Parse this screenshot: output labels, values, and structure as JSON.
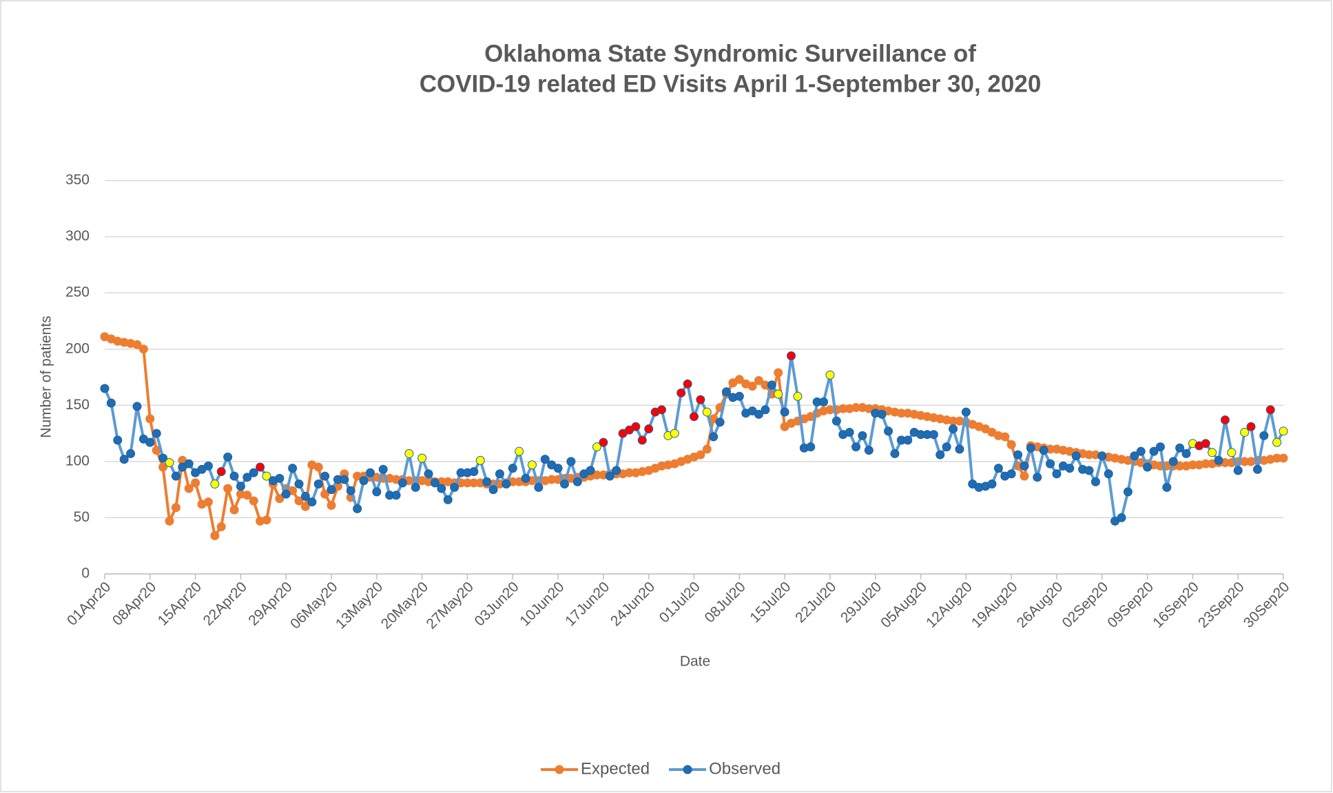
{
  "chart_data": {
    "type": "line",
    "title": [
      "Oklahoma State Syndromic Surveillance of",
      "COVID-19 related ED Visits April 1-September 30, 2020"
    ],
    "x_label": "Date",
    "y_label": "Number of patients",
    "categories": [
      "01Apr20",
      null,
      null,
      null,
      null,
      null,
      null,
      "08Apr20",
      null,
      null,
      null,
      null,
      null,
      null,
      "15Apr20",
      null,
      null,
      null,
      null,
      null,
      null,
      "22Apr20",
      null,
      null,
      null,
      null,
      null,
      null,
      "29Apr20",
      null,
      null,
      null,
      null,
      null,
      null,
      "06May20",
      null,
      null,
      null,
      null,
      null,
      null,
      "13May20",
      null,
      null,
      null,
      null,
      null,
      null,
      "20May20",
      null,
      null,
      null,
      null,
      null,
      null,
      "27May20",
      null,
      null,
      null,
      null,
      null,
      null,
      "03Jun20",
      null,
      null,
      null,
      null,
      null,
      null,
      "10Jun20",
      null,
      null,
      null,
      null,
      null,
      null,
      "17Jun20",
      null,
      null,
      null,
      null,
      null,
      null,
      "24Jun20",
      null,
      null,
      null,
      null,
      null,
      null,
      "01Jul20",
      null,
      null,
      null,
      null,
      null,
      null,
      "08Jul20",
      null,
      null,
      null,
      null,
      null,
      null,
      "15Jul20",
      null,
      null,
      null,
      null,
      null,
      null,
      "22Jul20",
      null,
      null,
      null,
      null,
      null,
      null,
      "29Jul20",
      null,
      null,
      null,
      null,
      null,
      null,
      "05Aug20",
      null,
      null,
      null,
      null,
      null,
      null,
      "12Aug20",
      null,
      null,
      null,
      null,
      null,
      null,
      "19Aug20",
      null,
      null,
      null,
      null,
      null,
      null,
      "26Aug20",
      null,
      null,
      null,
      null,
      null,
      null,
      "02Sep20",
      null,
      null,
      null,
      null,
      null,
      null,
      "09Sep20",
      null,
      null,
      null,
      null,
      null,
      null,
      "16Sep20",
      null,
      null,
      null,
      null,
      null,
      null,
      "23Sep20",
      null,
      null,
      null,
      null,
      null,
      null,
      "30Sep20"
    ],
    "series": [
      {
        "name": "Expected",
        "color": "#ed7d31",
        "values": [
          211,
          209,
          207,
          206,
          205,
          204,
          200,
          138,
          110,
          95,
          47,
          59,
          101,
          76,
          81,
          62,
          64,
          34,
          42,
          76,
          57,
          71,
          70,
          65,
          47,
          48,
          80,
          67,
          76,
          74,
          65,
          60,
          97,
          95,
          71,
          61,
          78,
          89,
          68,
          87,
          87,
          86,
          86,
          85,
          85,
          84,
          84,
          83,
          83,
          83,
          82,
          82,
          82,
          82,
          81,
          81,
          81,
          81,
          81,
          80,
          80,
          80,
          81,
          82,
          82,
          82,
          83,
          83,
          83,
          84,
          84,
          85,
          85,
          86,
          86,
          87,
          88,
          88,
          89,
          89,
          89,
          90,
          90,
          91,
          92,
          94,
          96,
          97,
          98,
          100,
          102,
          104,
          106,
          111,
          138,
          148,
          160,
          170,
          173,
          169,
          167,
          172,
          168,
          160,
          179,
          131,
          134,
          136,
          138,
          140,
          143,
          145,
          146,
          146,
          147,
          147,
          148,
          148,
          147,
          147,
          146,
          145,
          144,
          143,
          143,
          142,
          141,
          140,
          139,
          138,
          137,
          136,
          136,
          135,
          133,
          131,
          129,
          126,
          123,
          122,
          115,
          96,
          87,
          114,
          113,
          112,
          111,
          111,
          110,
          109,
          108,
          107,
          106,
          106,
          105,
          104,
          103,
          102,
          101,
          100,
          99,
          98,
          97,
          96,
          96,
          96,
          96,
          96,
          97,
          97,
          98,
          98,
          99,
          99,
          99,
          100,
          100,
          100,
          101,
          101,
          102,
          103,
          103
        ]
      },
      {
        "name": "Observed",
        "color": "#5b9bd5",
        "values": [
          165,
          152,
          119,
          102,
          107,
          149,
          120,
          117,
          125,
          103,
          99,
          87,
          95,
          98,
          90,
          93,
          96,
          80,
          91,
          104,
          87,
          78,
          86,
          90,
          95,
          87,
          83,
          85,
          71,
          94,
          80,
          69,
          64,
          80,
          87,
          75,
          84,
          84,
          74,
          58,
          83,
          90,
          73,
          93,
          70,
          70,
          81,
          107,
          77,
          103,
          89,
          81,
          76,
          66,
          77,
          90,
          90,
          91,
          101,
          82,
          75,
          89,
          80,
          94,
          109,
          85,
          97,
          77,
          102,
          97,
          94,
          80,
          100,
          82,
          89,
          92,
          113,
          117,
          87,
          92,
          125,
          128,
          131,
          119,
          129,
          144,
          146,
          123,
          125,
          161,
          169,
          140,
          155,
          144,
          122,
          135,
          162,
          157,
          158,
          143,
          145,
          142,
          146,
          168,
          160,
          144,
          194,
          158,
          112,
          113,
          153,
          153,
          177,
          136,
          124,
          126,
          113,
          123,
          110,
          143,
          142,
          127,
          107,
          119,
          119,
          126,
          124,
          124,
          124,
          106,
          113,
          129,
          111,
          144,
          80,
          77,
          78,
          80,
          94,
          87,
          89,
          106,
          96,
          112,
          86,
          110,
          98,
          89,
          96,
          94,
          105,
          93,
          92,
          82,
          105,
          89,
          47,
          50,
          73,
          105,
          109,
          95,
          109,
          113,
          77,
          100,
          112,
          107,
          116,
          114,
          116,
          108,
          101,
          137,
          108,
          92,
          126,
          131,
          93,
          123,
          146,
          117,
          127
        ],
        "marker_colors": [
          "#1f6db3",
          "#1f6db3",
          "#1f6db3",
          "#1f6db3",
          "#1f6db3",
          "#1f6db3",
          "#1f6db3",
          "#1f6db3",
          "#1f6db3",
          "#1f6db3",
          "#ffff00",
          "#1f6db3",
          "#1f6db3",
          "#1f6db3",
          "#1f6db3",
          "#1f6db3",
          "#1f6db3",
          "#ffff00",
          "#ff0000",
          "#1f6db3",
          "#1f6db3",
          "#1f6db3",
          "#1f6db3",
          "#1f6db3",
          "#ff0000",
          "#ffff00",
          "#1f6db3",
          "#1f6db3",
          "#1f6db3",
          "#1f6db3",
          "#1f6db3",
          "#1f6db3",
          "#1f6db3",
          "#1f6db3",
          "#1f6db3",
          "#1f6db3",
          "#1f6db3",
          "#1f6db3",
          "#1f6db3",
          "#1f6db3",
          "#1f6db3",
          "#1f6db3",
          "#1f6db3",
          "#1f6db3",
          "#1f6db3",
          "#1f6db3",
          "#1f6db3",
          "#ffff00",
          "#1f6db3",
          "#ffff00",
          "#1f6db3",
          "#1f6db3",
          "#1f6db3",
          "#1f6db3",
          "#1f6db3",
          "#1f6db3",
          "#1f6db3",
          "#1f6db3",
          "#ffff00",
          "#1f6db3",
          "#1f6db3",
          "#1f6db3",
          "#1f6db3",
          "#1f6db3",
          "#ffff00",
          "#1f6db3",
          "#ffff00",
          "#1f6db3",
          "#1f6db3",
          "#1f6db3",
          "#1f6db3",
          "#1f6db3",
          "#1f6db3",
          "#1f6db3",
          "#1f6db3",
          "#1f6db3",
          "#ffff00",
          "#ff0000",
          "#1f6db3",
          "#1f6db3",
          "#ff0000",
          "#ff0000",
          "#ff0000",
          "#ff0000",
          "#ff0000",
          "#ff0000",
          "#ff0000",
          "#ffff00",
          "#ffff00",
          "#ff0000",
          "#ff0000",
          "#ff0000",
          "#ff0000",
          "#ffff00",
          "#1f6db3",
          "#1f6db3",
          "#1f6db3",
          "#1f6db3",
          "#1f6db3",
          "#1f6db3",
          "#1f6db3",
          "#1f6db3",
          "#1f6db3",
          "#1f6db3",
          "#ffff00",
          "#1f6db3",
          "#ff0000",
          "#ffff00",
          "#1f6db3",
          "#1f6db3",
          "#1f6db3",
          "#1f6db3",
          "#ffff00",
          "#1f6db3",
          "#1f6db3",
          "#1f6db3",
          "#1f6db3",
          "#1f6db3",
          "#1f6db3",
          "#1f6db3",
          "#1f6db3",
          "#1f6db3",
          "#1f6db3",
          "#1f6db3",
          "#1f6db3",
          "#1f6db3",
          "#1f6db3",
          "#1f6db3",
          "#1f6db3",
          "#1f6db3",
          "#1f6db3",
          "#1f6db3",
          "#1f6db3",
          "#1f6db3",
          "#1f6db3",
          "#1f6db3",
          "#1f6db3",
          "#1f6db3",
          "#1f6db3",
          "#1f6db3",
          "#1f6db3",
          "#1f6db3",
          "#1f6db3",
          "#1f6db3",
          "#1f6db3",
          "#1f6db3",
          "#1f6db3",
          "#1f6db3",
          "#1f6db3",
          "#1f6db3",
          "#1f6db3",
          "#1f6db3",
          "#1f6db3",
          "#1f6db3",
          "#1f6db3",
          "#1f6db3",
          "#1f6db3",
          "#1f6db3",
          "#1f6db3",
          "#1f6db3",
          "#1f6db3",
          "#1f6db3",
          "#1f6db3",
          "#1f6db3",
          "#1f6db3",
          "#1f6db3",
          "#1f6db3",
          "#1f6db3",
          "#ffff00",
          "#ff0000",
          "#ff0000",
          "#ffff00",
          "#1f6db3",
          "#ff0000",
          "#ffff00",
          "#1f6db3",
          "#ffff00",
          "#ff0000",
          "#1f6db3",
          "#1f6db3",
          "#ff0000",
          "#ffff00",
          "#ffff00"
        ]
      }
    ],
    "ylim": [
      0,
      350
    ],
    "yticks": [
      0,
      50,
      100,
      150,
      200,
      250,
      300,
      350
    ],
    "grid": true,
    "legend": "bottom"
  }
}
